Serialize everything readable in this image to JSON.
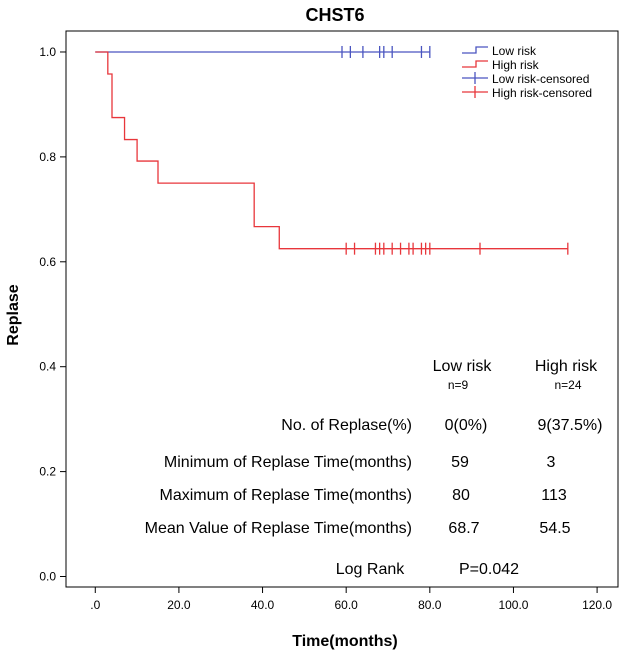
{
  "chart_data": {
    "type": "line",
    "title": "CHST6",
    "xlabel": "Time(months)",
    "ylabel": "Replase",
    "xlim": [
      -7,
      125
    ],
    "ylim": [
      -0.02,
      1.04
    ],
    "x_ticks": [
      0,
      20,
      40,
      60,
      80,
      100,
      120
    ],
    "x_tick_labels": [
      ".0",
      "20.0",
      "40.0",
      "60.0",
      "80.0",
      "100.0",
      "120.0"
    ],
    "y_ticks": [
      0,
      0.2,
      0.4,
      0.6,
      0.8,
      1.0
    ],
    "y_tick_labels": [
      "0.0",
      "0.2",
      "0.4",
      "0.6",
      "0.8",
      "1.0"
    ],
    "grid": false,
    "legend_position": "top-right",
    "series": [
      {
        "name": "Low risk",
        "color": "#4a55c0",
        "step_x": [
          0,
          80
        ],
        "step_y": [
          1.0,
          1.0
        ],
        "censored_x": [
          59,
          61,
          64,
          68,
          69,
          71,
          78,
          80
        ],
        "censored_y": [
          1.0,
          1.0,
          1.0,
          1.0,
          1.0,
          1.0,
          1.0,
          1.0
        ]
      },
      {
        "name": "High risk",
        "color": "#e8363b",
        "step_x": [
          0,
          3,
          4,
          5,
          7,
          10,
          15,
          38,
          44,
          113
        ],
        "step_y": [
          1.0,
          0.958,
          0.875,
          0.875,
          0.833,
          0.792,
          0.75,
          0.667,
          0.625,
          0.625
        ],
        "censored_x": [
          60,
          62,
          67,
          68,
          69,
          71,
          73,
          75,
          76,
          78,
          79,
          80,
          92,
          113
        ],
        "censored_y": [
          0.625,
          0.625,
          0.625,
          0.625,
          0.625,
          0.625,
          0.625,
          0.625,
          0.625,
          0.625,
          0.625,
          0.625,
          0.625,
          0.625
        ]
      }
    ],
    "legend": [
      "Low risk",
      "High risk",
      "Low risk-censored",
      "High risk-censored"
    ]
  },
  "stats_table": {
    "col_headers": [
      "Low risk",
      "High risk"
    ],
    "col_n": [
      "n=9",
      "n=24"
    ],
    "rows": [
      {
        "label": "No. of Replase(%)",
        "low": "0(0%)",
        "high": "9(37.5%)"
      },
      {
        "label": "Minimum of Replase Time(months)",
        "low": "59",
        "high": "3"
      },
      {
        "label": "Maximum of Replase Time(months)",
        "low": "80",
        "high": "113"
      },
      {
        "label": "Mean Value of Replase Time(months)",
        "low": "68.7",
        "high": "54.5"
      }
    ],
    "log_rank_label": "Log Rank",
    "log_rank_value": "P=0.042"
  }
}
